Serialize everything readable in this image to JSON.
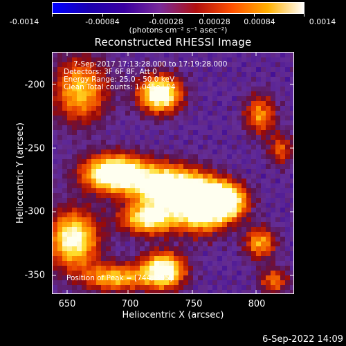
{
  "colorbar": {
    "labels": [
      "-0.0014",
      "-0.00084",
      "-0.00028",
      "0.00028",
      "0.00084",
      "0.0014"
    ],
    "unit": "(photons cm⁻² s⁻¹ asec⁻²)",
    "colors": [
      "#0000ff",
      "#1a00b0",
      "#3a00a0",
      "#7a2a9a",
      "#b01010",
      "#ff5000",
      "#ffb000",
      "#ffffff"
    ]
  },
  "title": "Reconstructed RHESSI Image",
  "annotations": {
    "time": "7-Sep-2017 17:13:28.000 to 17:19:28.000",
    "detectors": "Detectors: 3F 6F 8F, Att 0",
    "energy": "Energy Range: 25.0 - 50.0 keV",
    "clean": "Clean    Total counts: 1.045e+04",
    "peak": "Position of Peak = [744, 395]"
  },
  "axes": {
    "xlabel": "Heliocentric X (arcsec)",
    "ylabel": "Heliocentric Y (arcsec)",
    "xticks": [
      "650",
      "700",
      "750",
      "800"
    ],
    "yticks": [
      "-200",
      "-250",
      "-300",
      "-350"
    ],
    "xlim": [
      638,
      830
    ],
    "ylim": [
      -365,
      -175
    ]
  },
  "date": "6-Sep-2022 14:09"
}
